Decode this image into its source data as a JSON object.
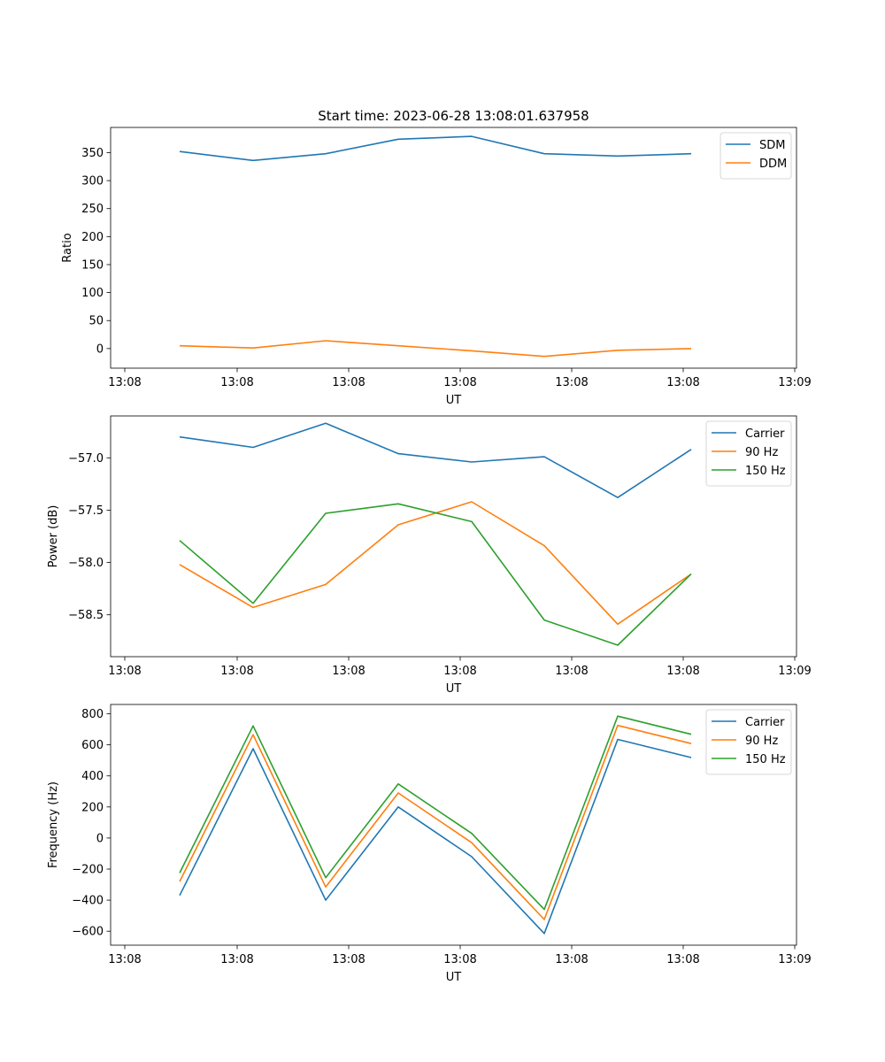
{
  "figure": {
    "title": "Start time: 2023-06-28 13:08:01.637958"
  },
  "chart_data": [
    {
      "type": "line",
      "xlabel": "UT",
      "ylabel": "Ratio",
      "x_tick_labels": [
        "13:08",
        "13:08",
        "13:08",
        "13:08",
        "13:08",
        "13:08",
        "13:09"
      ],
      "y_ticks": [
        0,
        50,
        100,
        150,
        200,
        250,
        300,
        350
      ],
      "ylim": [
        -35,
        395
      ],
      "legend_position": "top-right",
      "grid": false,
      "series": [
        {
          "name": "SDM",
          "color": "#1f77b4",
          "values": [
            352,
            336,
            348,
            374,
            379,
            348,
            344,
            348
          ]
        },
        {
          "name": "DDM",
          "color": "#ff7f0e",
          "values": [
            5,
            1,
            14,
            5,
            -4,
            -14,
            -3,
            0
          ]
        }
      ]
    },
    {
      "type": "line",
      "xlabel": "UT",
      "ylabel": "Power (dB)",
      "x_tick_labels": [
        "13:08",
        "13:08",
        "13:08",
        "13:08",
        "13:08",
        "13:08",
        "13:09"
      ],
      "y_ticks": [
        -57.0,
        -57.5,
        -58.0,
        -58.5
      ],
      "ylim": [
        -58.9,
        -56.6
      ],
      "legend_position": "top-right",
      "grid": false,
      "series": [
        {
          "name": "Carrier",
          "color": "#1f77b4",
          "values": [
            -56.8,
            -56.9,
            -56.67,
            -56.96,
            -57.04,
            -56.99,
            -57.38,
            -56.92
          ]
        },
        {
          "name": "90 Hz",
          "color": "#ff7f0e",
          "values": [
            -58.02,
            -58.43,
            -58.21,
            -57.64,
            -57.42,
            -57.84,
            -58.59,
            -58.11
          ]
        },
        {
          "name": "150 Hz",
          "color": "#2ca02c",
          "values": [
            -57.79,
            -58.39,
            -57.53,
            -57.44,
            -57.61,
            -58.55,
            -58.79,
            -58.11
          ]
        }
      ]
    },
    {
      "type": "line",
      "xlabel": "UT",
      "ylabel": "Frequency (Hz)",
      "x_tick_labels": [
        "13:08",
        "13:08",
        "13:08",
        "13:08",
        "13:08",
        "13:08",
        "13:09"
      ],
      "y_ticks": [
        -600,
        -400,
        -200,
        0,
        200,
        400,
        600,
        800
      ],
      "ylim": [
        -690,
        860
      ],
      "legend_position": "top-right",
      "grid": false,
      "series": [
        {
          "name": "Carrier",
          "color": "#1f77b4",
          "values": [
            -370,
            575,
            -400,
            200,
            -120,
            -615,
            635,
            518
          ]
        },
        {
          "name": "90 Hz",
          "color": "#ff7f0e",
          "values": [
            -280,
            665,
            -315,
            290,
            -30,
            -525,
            725,
            608
          ]
        },
        {
          "name": "150 Hz",
          "color": "#2ca02c",
          "values": [
            -225,
            722,
            -255,
            348,
            30,
            -460,
            785,
            668
          ]
        }
      ]
    }
  ]
}
